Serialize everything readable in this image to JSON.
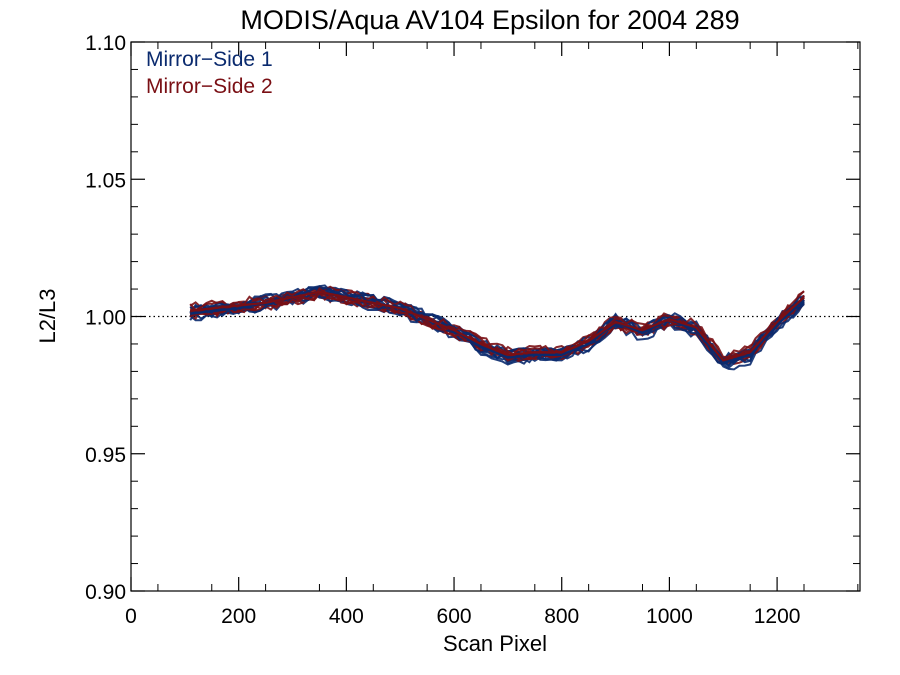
{
  "chart_data": {
    "type": "line",
    "title": "MODIS/Aqua AV104 Epsilon for 2004 289",
    "xlabel": "Scan Pixel",
    "ylabel": "L2/L3",
    "xlim": [
      0,
      1354
    ],
    "ylim": [
      0.9,
      1.1
    ],
    "xticks": [
      "0",
      "200",
      "400",
      "600",
      "800",
      "1000",
      "1200"
    ],
    "yticks": [
      "0.90",
      "0.95",
      "1.00",
      "1.05",
      "1.10"
    ],
    "reference_line": 1.0,
    "legend_placement": "top-left",
    "series": [
      {
        "name": "Mirror−Side 1",
        "color": "#0a2a6e",
        "x": [
          110,
          150,
          200,
          250,
          300,
          350,
          400,
          450,
          500,
          550,
          600,
          650,
          700,
          750,
          800,
          850,
          900,
          950,
          1000,
          1050,
          1100,
          1150,
          1200,
          1250
        ],
        "y": [
          1.001,
          1.002,
          1.003,
          1.005,
          1.007,
          1.009,
          1.007,
          1.005,
          1.003,
          0.999,
          0.995,
          0.989,
          0.985,
          0.986,
          0.986,
          0.99,
          0.998,
          0.994,
          0.999,
          0.995,
          0.983,
          0.986,
          0.997,
          1.006
        ]
      },
      {
        "name": "Mirror−Side 2",
        "color": "#7a0f14",
        "x": [
          110,
          150,
          200,
          250,
          300,
          350,
          400,
          450,
          500,
          550,
          600,
          650,
          700,
          750,
          800,
          850,
          900,
          950,
          1000,
          1050,
          1100,
          1150,
          1200,
          1250
        ],
        "y": [
          1.002,
          1.003,
          1.004,
          1.005,
          1.007,
          1.009,
          1.007,
          1.005,
          1.003,
          0.999,
          0.995,
          0.99,
          0.986,
          0.987,
          0.987,
          0.991,
          0.998,
          0.995,
          0.999,
          0.996,
          0.984,
          0.987,
          0.998,
          1.007
        ]
      }
    ]
  }
}
